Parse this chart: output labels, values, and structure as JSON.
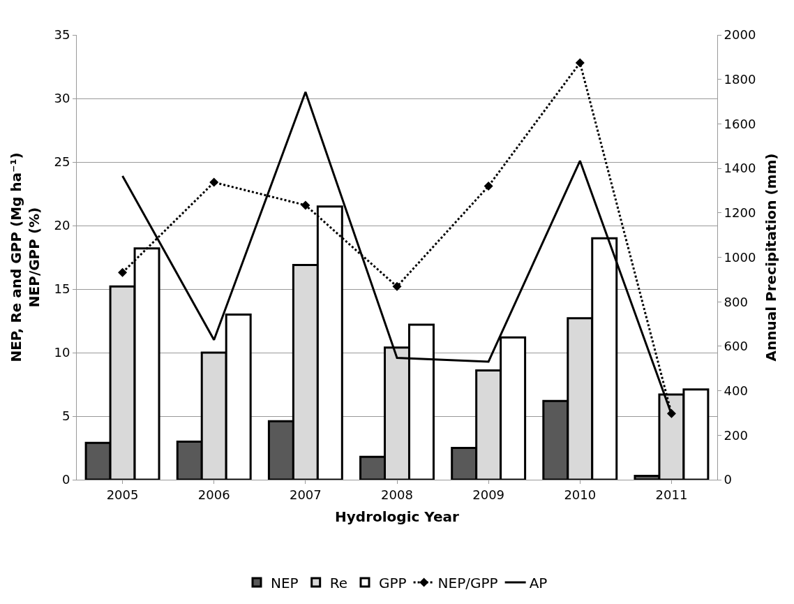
{
  "chart_data": {
    "type": "bar",
    "xlabel": "Hydrologic Year",
    "ylabel": "NEP, Re and GPP (Mg ha⁻¹)\nNEP/GPP (%)",
    "y2label": "Annual Precipitation (mm)",
    "categories": [
      "2005",
      "2006",
      "2007",
      "2008",
      "2009",
      "2010",
      "2011"
    ],
    "series": [
      {
        "name": "NEP",
        "color": "#595959",
        "values": [
          2.9,
          3.0,
          4.6,
          1.8,
          2.5,
          6.2,
          0.3
        ]
      },
      {
        "name": "Re",
        "color": "#d9d9d9",
        "values": [
          15.2,
          10.0,
          16.9,
          10.4,
          8.6,
          12.7,
          6.7
        ]
      },
      {
        "name": "GPP",
        "color": "#ffffff",
        "values": [
          18.2,
          13.0,
          21.5,
          12.2,
          11.2,
          19.0,
          7.1
        ]
      },
      {
        "name": "NEP/GPP",
        "type": "line",
        "color": "#000000",
        "line_style": "dotted",
        "marker": "diamond",
        "values": [
          16.3,
          23.4,
          21.6,
          15.2,
          23.1,
          32.8,
          5.2
        ]
      },
      {
        "name": "AP",
        "type": "line",
        "color": "#000000",
        "line_style": "solid",
        "marker": "none",
        "axis": "y2",
        "values": [
          1366,
          629,
          1743,
          548,
          531,
          1434,
          294
        ]
      }
    ],
    "ylim": [
      0,
      35
    ],
    "yticks": [
      0,
      5,
      10,
      15,
      20,
      25,
      30,
      35
    ],
    "y2lim": [
      0,
      2000
    ],
    "y2ticks": [
      0,
      200,
      400,
      600,
      800,
      1000,
      1200,
      1400,
      1600,
      1800,
      2000
    ],
    "grid": "y",
    "legend": "bottom"
  }
}
